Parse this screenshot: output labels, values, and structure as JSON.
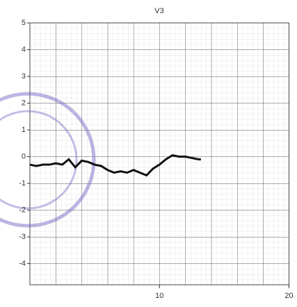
{
  "chart_data": {
    "type": "line",
    "title": "V3",
    "x": [
      0,
      0.5,
      1,
      1.5,
      2,
      2.5,
      3,
      3.5,
      4,
      4.5,
      5,
      5.5,
      6,
      6.5,
      7,
      7.5,
      8,
      8.5,
      9,
      9.5,
      10,
      10.5,
      11,
      11.5,
      12,
      12.5,
      13,
      13.2
    ],
    "series": [
      {
        "color": "#111111",
        "values": [
          -0.3,
          -0.35,
          -0.3,
          -0.3,
          -0.25,
          -0.3,
          -0.1,
          -0.4,
          -0.15,
          -0.2,
          -0.3,
          -0.35,
          -0.5,
          -0.6,
          -0.55,
          -0.6,
          -0.5,
          -0.6,
          -0.7,
          -0.45,
          -0.3,
          -0.1,
          0.05,
          0,
          0,
          -0.05,
          -0.1,
          -0.1
        ]
      }
    ],
    "xlim": [
      0,
      20
    ],
    "xticks": [
      10,
      20
    ],
    "ylim": [
      -5,
      5
    ],
    "yticks": [
      5,
      4,
      3,
      2,
      1,
      0,
      -1,
      -2,
      -3,
      -4
    ]
  }
}
